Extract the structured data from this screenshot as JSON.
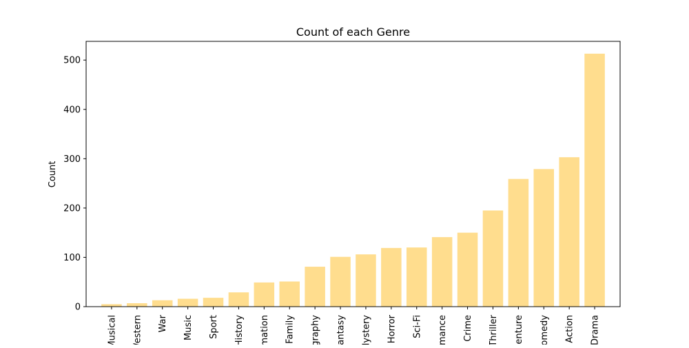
{
  "chart_data": {
    "type": "bar",
    "title": "Count of each Genre",
    "xlabel": "",
    "ylabel": "Count",
    "categories": [
      "Musical",
      "Western",
      "War",
      "Music",
      "Sport",
      "History",
      "Animation",
      "Family",
      "Biography",
      "Fantasy",
      "Mystery",
      "Horror",
      "Sci-Fi",
      "Romance",
      "Crime",
      "Thriller",
      "Adventure",
      "Comedy",
      "Action",
      "Drama"
    ],
    "values": [
      5,
      7,
      13,
      16,
      18,
      29,
      49,
      51,
      81,
      101,
      106,
      119,
      120,
      141,
      150,
      195,
      259,
      279,
      303,
      513
    ],
    "ylim": [
      0,
      538
    ],
    "yticks": [
      0,
      100,
      200,
      300,
      400,
      500
    ],
    "bar_color": "#ffdd8e",
    "grid": false,
    "xtick_rotation": 90
  }
}
